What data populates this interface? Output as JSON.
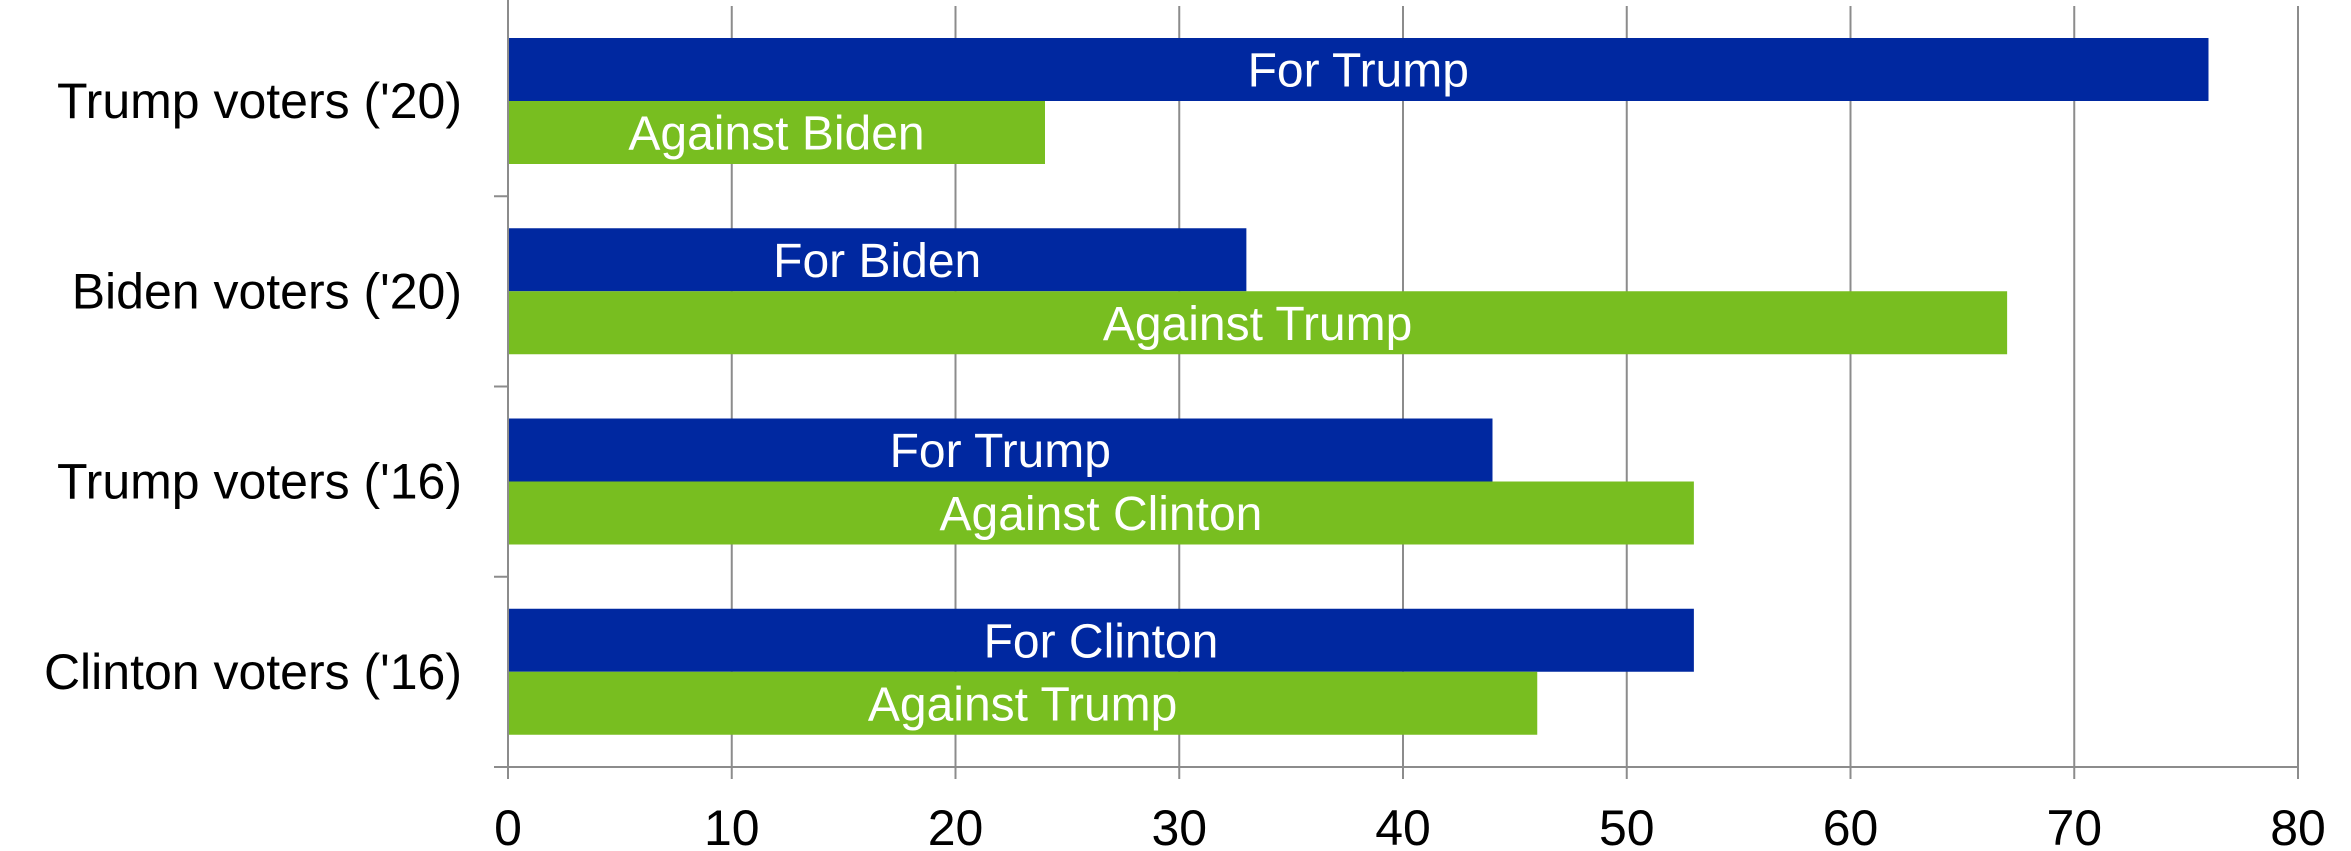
{
  "chart_data": {
    "type": "bar",
    "orientation": "horizontal",
    "categories": [
      "Trump voters ('20)",
      "Biden voters ('20)",
      "Trump voters ('16)",
      "Clinton voters ('16)"
    ],
    "series": [
      {
        "color": "#0028A0",
        "values": [
          76,
          33,
          44,
          53
        ],
        "labels": [
          "For Trump",
          "For Biden",
          "For Trump",
          "For Clinton"
        ]
      },
      {
        "color": "#78BE20",
        "values": [
          24,
          67,
          53,
          46
        ],
        "labels": [
          "Against Biden",
          "Against Trump",
          "Against Clinton",
          "Against Trump"
        ]
      }
    ],
    "xlim": [
      0,
      80
    ],
    "xticks": [
      0,
      10,
      20,
      30,
      40,
      50,
      60,
      70,
      80
    ],
    "grid": "vertical",
    "legend": "none",
    "title": "",
    "xlabel": "",
    "ylabel": ""
  }
}
